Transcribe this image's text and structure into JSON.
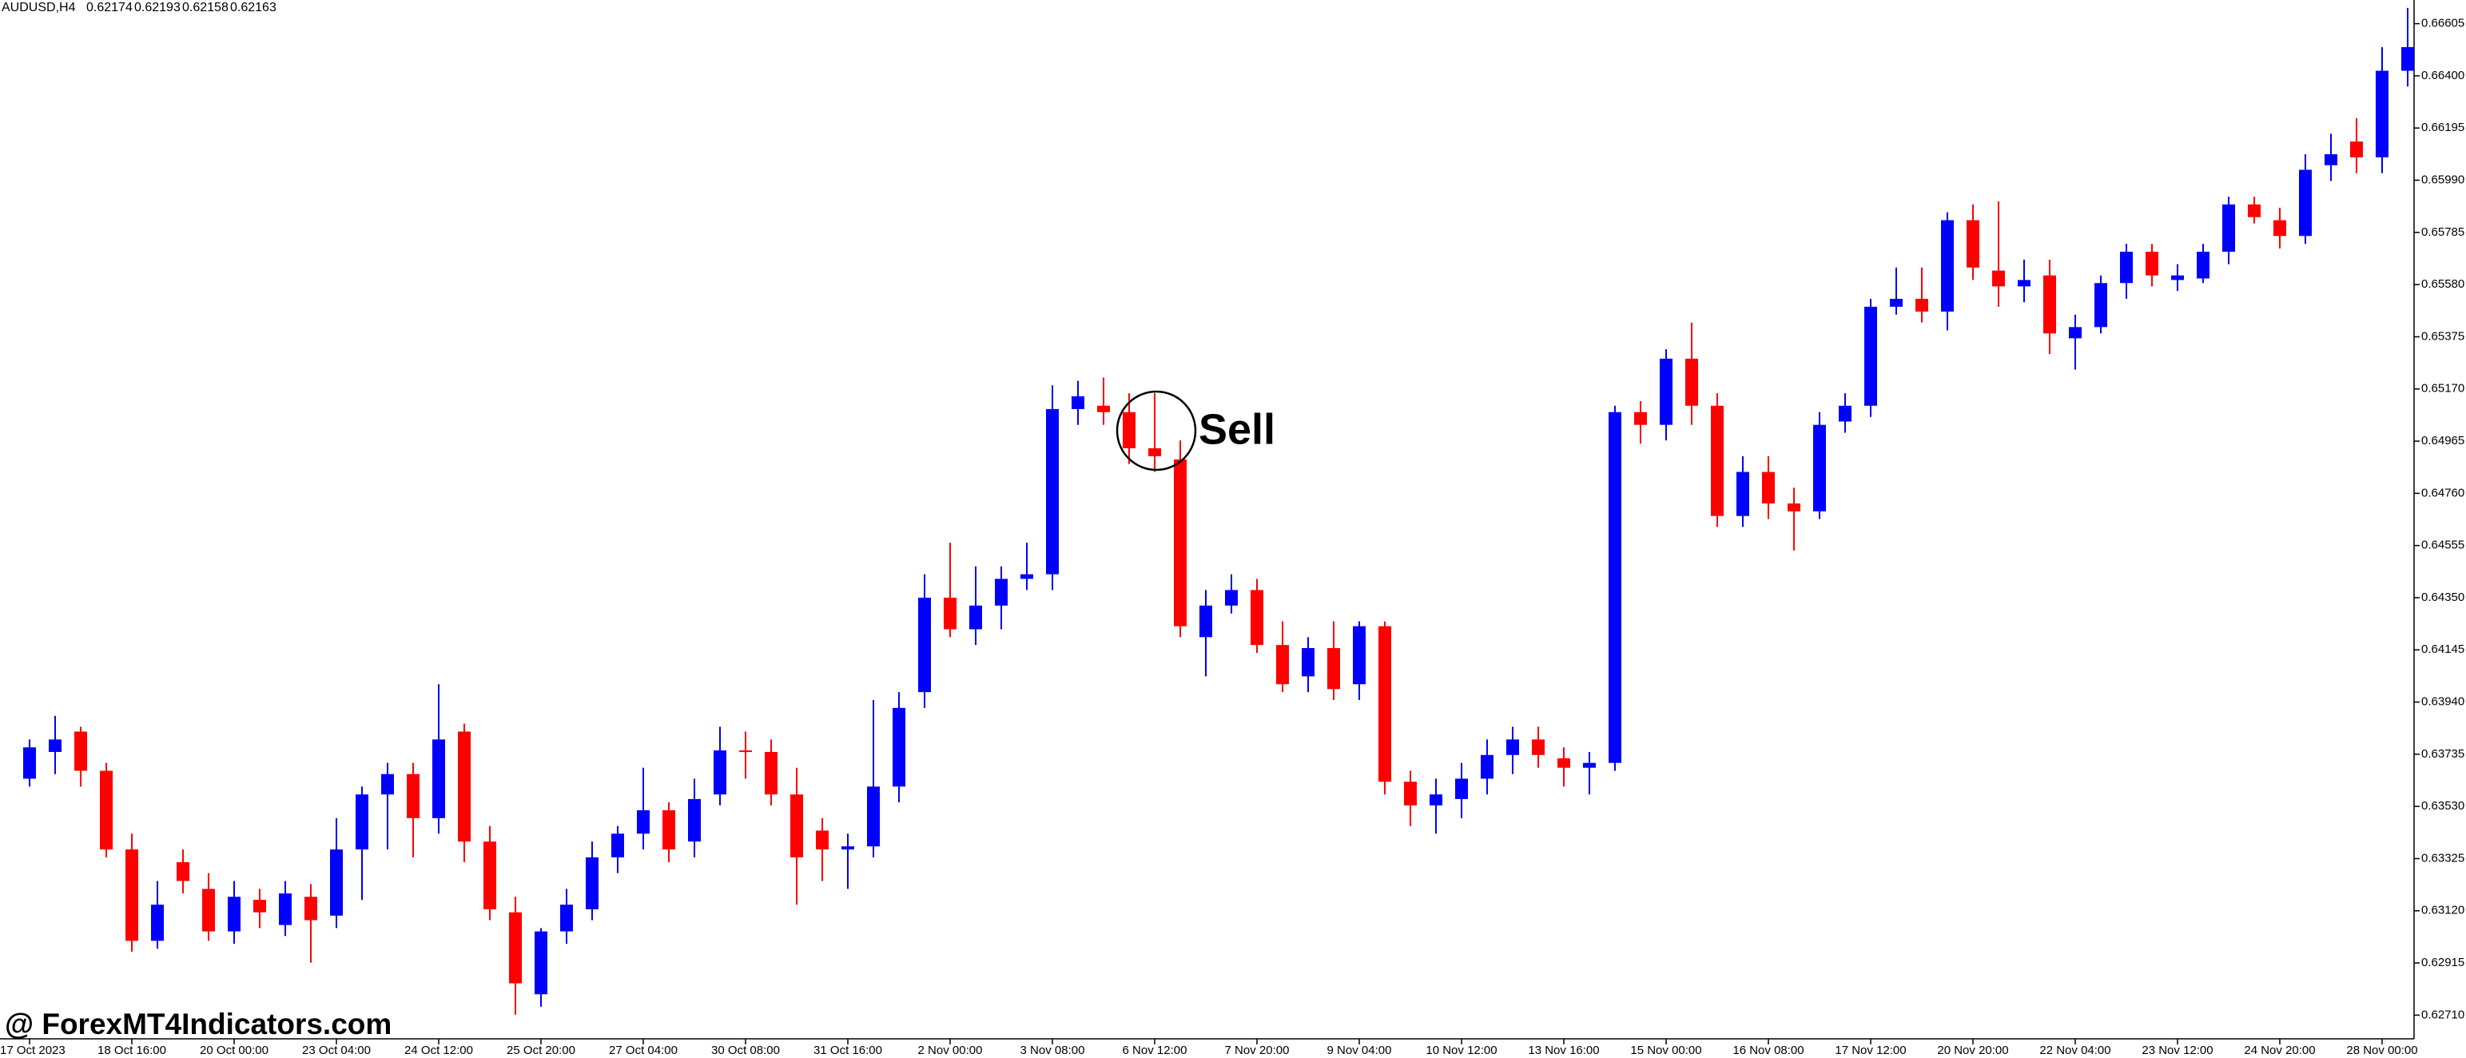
{
  "chart_data": {
    "type": "candlestick",
    "title": "AUDUSD,H4",
    "quote": [
      "0.62174",
      "0.62193",
      "0.62158",
      "0.62163"
    ],
    "annotation": "Sell",
    "watermark": "@ ForexMT4Indicators.com",
    "up_color": "#0000ff",
    "down_color": "#ff0000",
    "categories": [
      "17 Oct 2023",
      null,
      null,
      null,
      "18 Oct 16:00",
      null,
      null,
      null,
      "20 Oct 00:00",
      null,
      null,
      null,
      "23 Oct 04:00",
      null,
      null,
      null,
      "24 Oct 12:00",
      null,
      null,
      null,
      "25 Oct 20:00",
      null,
      null,
      null,
      "27 Oct 04:00",
      null,
      null,
      null,
      "30 Oct 08:00",
      null,
      null,
      null,
      "31 Oct 16:00",
      null,
      null,
      null,
      "2 Nov 00:00",
      null,
      null,
      null,
      "3 Nov 08:00",
      null,
      null,
      null,
      "6 Nov 12:00",
      null,
      null,
      null,
      "7 Nov 20:00",
      null,
      null,
      null,
      "9 Nov 04:00",
      null,
      null,
      null,
      "10 Nov 12:00",
      null,
      null,
      null,
      "13 Nov 16:00",
      null,
      null,
      null,
      "15 Nov 00:00",
      null,
      null,
      null,
      "16 Nov 08:00",
      null,
      null,
      null,
      "17 Nov 12:00",
      null,
      null,
      null,
      "20 Nov 20:00",
      null,
      null,
      null,
      "22 Nov 04:00",
      null,
      null,
      null,
      "23 Nov 12:00",
      null,
      null,
      null,
      "24 Nov 20:00",
      null,
      null,
      null,
      "28 Nov 00:00",
      null
    ],
    "open": [
      0.63639,
      0.63744,
      0.63824,
      0.6367,
      0.63361,
      0.63002,
      0.63311,
      0.63206,
      0.63039,
      0.63163,
      0.63064,
      0.63175,
      0.63101,
      0.63361,
      0.63577,
      0.63657,
      0.63484,
      0.63824,
      0.63392,
      0.63114,
      0.62792,
      0.63039,
      0.63126,
      0.6333,
      0.63423,
      0.63515,
      0.63392,
      0.63577,
      0.6375,
      0.63744,
      0.63577,
      0.63435,
      0.63361,
      0.63373,
      0.63608,
      0.63979,
      0.6435,
      0.64226,
      0.64319,
      0.64424,
      0.64442,
      0.65091,
      0.65104,
      0.65079,
      0.64937,
      0.64893,
      0.64195,
      0.64319,
      0.6438,
      0.64164,
      0.64041,
      0.64152,
      0.6401,
      0.64238,
      0.63627,
      0.63534,
      0.63559,
      0.63639,
      0.63732,
      0.63793,
      0.63719,
      0.63682,
      0.63701,
      0.65079,
      0.65029,
      0.65289,
      0.65104,
      0.64671,
      0.64844,
      0.6472,
      0.64689,
      0.65042,
      0.65104,
      0.65493,
      0.65524,
      0.65474,
      0.65833,
      0.65635,
      0.65573,
      0.65616,
      0.65369,
      0.65413,
      0.65586,
      0.65709,
      0.65598,
      0.65604,
      0.65709,
      0.65895,
      0.65833,
      0.65771,
      0.66049,
      0.66142,
      0.6608,
      0.6642
    ],
    "high": [
      0.63793,
      0.63886,
      0.63843,
      0.63701,
      0.63423,
      0.63237,
      0.63361,
      0.63268,
      0.63237,
      0.63206,
      0.63237,
      0.63225,
      0.63484,
      0.63608,
      0.63701,
      0.63701,
      0.6401,
      0.63855,
      0.63453,
      0.63175,
      0.63052,
      0.63206,
      0.63392,
      0.63453,
      0.63682,
      0.63546,
      0.63639,
      0.63843,
      0.63824,
      0.63793,
      0.63682,
      0.63484,
      0.63423,
      0.63948,
      0.63979,
      0.64442,
      0.64566,
      0.64473,
      0.64473,
      0.64566,
      0.65184,
      0.65202,
      0.65215,
      0.65153,
      0.65153,
      0.64968,
      0.6438,
      0.64442,
      0.64424,
      0.64257,
      0.64195,
      0.64257,
      0.64257,
      0.64257,
      0.6367,
      0.63639,
      0.63701,
      0.63793,
      0.63843,
      0.63843,
      0.63762,
      0.63744,
      0.65104,
      0.65122,
      0.65326,
      0.65431,
      0.65153,
      0.64906,
      0.64906,
      0.64782,
      0.65079,
      0.65153,
      0.65524,
      0.65647,
      0.65647,
      0.65864,
      0.65895,
      0.65907,
      0.65678,
      0.65678,
      0.65462,
      0.65616,
      0.6574,
      0.6574,
      0.6566,
      0.6574,
      0.65925,
      0.65925,
      0.65882,
      0.66092,
      0.66173,
      0.66234,
      0.66513,
      0.66667
    ],
    "low": [
      0.63608,
      0.63657,
      0.63608,
      0.6333,
      0.62959,
      0.62971,
      0.63188,
      0.63002,
      0.6299,
      0.63052,
      0.63021,
      0.62916,
      0.63052,
      0.63163,
      0.63361,
      0.6333,
      0.63423,
      0.63311,
      0.63083,
      0.62712,
      0.62743,
      0.6299,
      0.63083,
      0.63268,
      0.63361,
      0.63311,
      0.6333,
      0.63534,
      0.63639,
      0.63534,
      0.63144,
      0.63237,
      0.63206,
      0.6333,
      0.63546,
      0.63917,
      0.64195,
      0.64164,
      0.64226,
      0.6438,
      0.6438,
      0.65029,
      0.65029,
      0.64875,
      0.64844,
      0.64195,
      0.64041,
      0.64288,
      0.64133,
      0.63979,
      0.63979,
      0.63948,
      0.63948,
      0.63577,
      0.63453,
      0.63423,
      0.63484,
      0.63577,
      0.63657,
      0.63682,
      0.63608,
      0.63577,
      0.6367,
      0.64955,
      0.64968,
      0.65029,
      0.64628,
      0.64628,
      0.64659,
      0.64535,
      0.64659,
      0.64998,
      0.6506,
      0.65462,
      0.65431,
      0.654,
      0.65598,
      0.65493,
      0.65511,
      0.65307,
      0.65246,
      0.65388,
      0.65524,
      0.65573,
      0.65555,
      0.65586,
      0.6566,
      0.6582,
      0.65722,
      0.6574,
      0.65987,
      0.66018,
      0.66018,
      0.66358
    ],
    "close": [
      0.63762,
      0.63793,
      0.6367,
      0.63361,
      0.63002,
      0.63144,
      0.63237,
      0.63039,
      0.63175,
      0.63114,
      0.63188,
      0.63083,
      0.63361,
      0.63577,
      0.63657,
      0.63484,
      0.63793,
      0.63392,
      0.63126,
      0.62835,
      0.63039,
      0.63144,
      0.6333,
      0.63423,
      0.63515,
      0.63361,
      0.63559,
      0.6375,
      0.63744,
      0.63577,
      0.6333,
      0.63361,
      0.63373,
      0.63608,
      0.63917,
      0.6435,
      0.64226,
      0.64319,
      0.64424,
      0.64442,
      0.65091,
      0.65141,
      0.65079,
      0.64937,
      0.64906,
      0.64238,
      0.64319,
      0.6438,
      0.64164,
      0.6401,
      0.64152,
      0.63991,
      0.64238,
      0.63627,
      0.63534,
      0.63577,
      0.63639,
      0.63732,
      0.63793,
      0.63732,
      0.63682,
      0.63701,
      0.65079,
      0.65029,
      0.65289,
      0.65104,
      0.64671,
      0.64844,
      0.6472,
      0.64689,
      0.65029,
      0.65104,
      0.65493,
      0.65524,
      0.65474,
      0.65833,
      0.65647,
      0.65573,
      0.65598,
      0.65388,
      0.65413,
      0.65586,
      0.65709,
      0.65616,
      0.65616,
      0.65709,
      0.65895,
      0.65845,
      0.65771,
      0.66031,
      0.66092,
      0.6608,
      0.6642,
      0.66513
    ],
    "ylim": [
      0.62617,
      0.66698
    ],
    "yticks": [
      0.66605,
      {
        "value": 0.664,
        "label": "0.66400"
      },
      0.66195,
      {
        "value": 0.6599,
        "label": "0.65990"
      },
      0.65785,
      {
        "value": 0.6558,
        "label": "0.65580"
      },
      0.65375,
      {
        "value": 0.6517,
        "label": "0.65170"
      },
      0.64965,
      {
        "value": 0.6476,
        "label": "0.64760"
      },
      0.64555,
      {
        "value": 0.6435,
        "label": "0.64350"
      },
      0.64145,
      {
        "value": 0.6394,
        "label": "0.63940"
      },
      0.63735,
      {
        "value": 0.6353,
        "label": "0.63530"
      },
      0.63325,
      {
        "value": 0.6312,
        "label": "0.63120"
      },
      0.62915,
      {
        "value": 0.6271,
        "label": "0.62710"
      }
    ],
    "grid": false
  }
}
